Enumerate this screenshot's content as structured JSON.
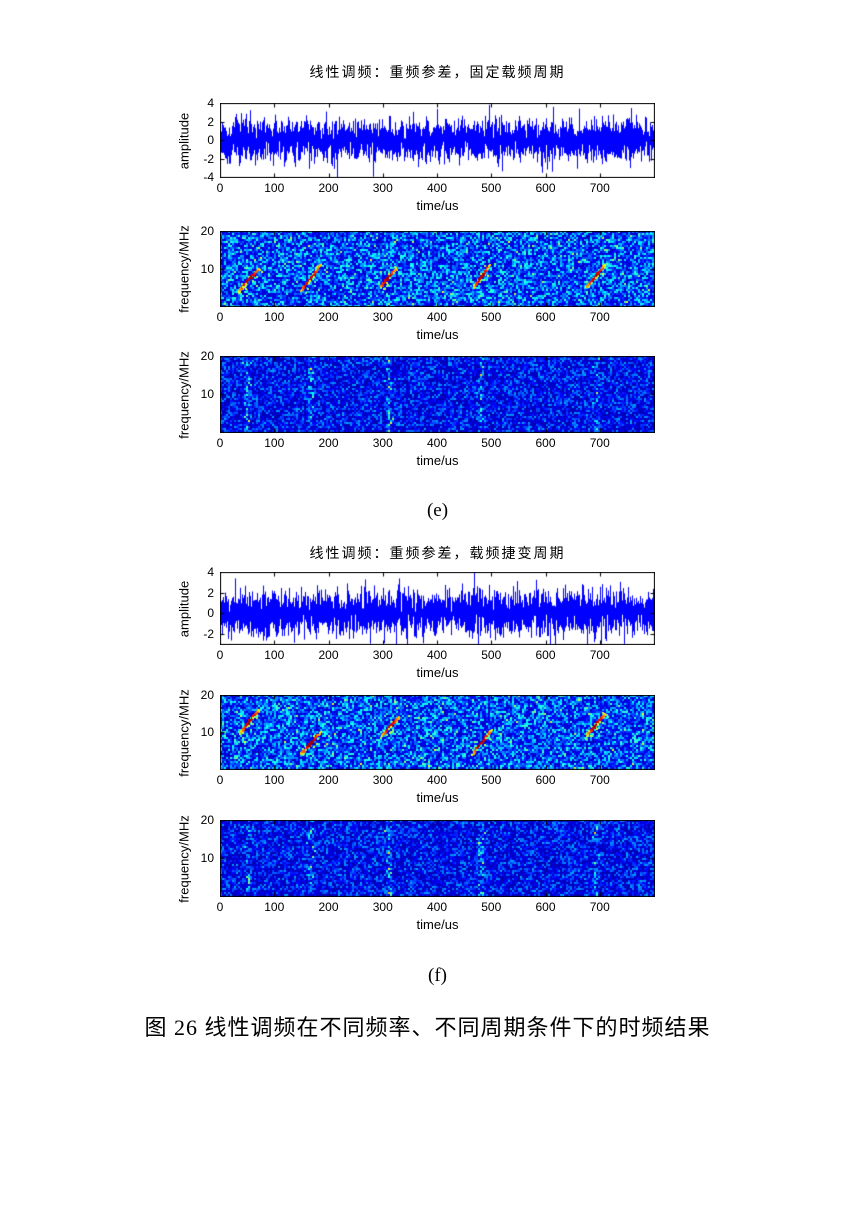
{
  "page": {
    "caption": "图 26 线性调频在不同频率、不同周期条件下的时频结果"
  },
  "figures": [
    {
      "label": "(e)",
      "title": "线性调频：重频参差，固定载频周期"
    },
    {
      "label": "(f)",
      "title": "线性调频：重频参差，载频捷变周期"
    }
  ],
  "colors": {
    "waveform_line": "#0000ff",
    "axis": "#000000",
    "page_background": "#ffffff",
    "spectrogram_colormap": "jet"
  },
  "chart_data": [
    {
      "type": "line",
      "render": "waveform",
      "seed": 11,
      "xlabel": "time/us",
      "ylabel": "amplitude",
      "xlim": [
        0,
        800
      ],
      "ylim": [
        -4,
        4
      ],
      "xticks": [
        0,
        100,
        200,
        300,
        400,
        500,
        600,
        700
      ],
      "yticks": [
        4,
        2,
        0,
        -2,
        -4
      ],
      "signal": "dense zero-mean gaussian-like noise, envelope about ±2.5, occasional peaks to ±4"
    },
    {
      "type": "heatmap",
      "render": "chirp-spectrogram",
      "seed": 22,
      "xlabel": "time/us",
      "ylabel": "frequency/MHz",
      "xlim": [
        0,
        800
      ],
      "ylim": [
        0,
        20
      ],
      "xticks": [
        0,
        100,
        200,
        300,
        400,
        500,
        600,
        700
      ],
      "yticks": [
        20,
        10
      ],
      "note": "five linear up-chirps at staggered PRI, fixed carrier band ~4-11 MHz, bright noisy blue background",
      "chirps": [
        {
          "t0": 35,
          "t1": 72,
          "f0": 4,
          "f1": 10
        },
        {
          "t0": 150,
          "t1": 186,
          "f0": 4,
          "f1": 11
        },
        {
          "t0": 295,
          "t1": 325,
          "f0": 5,
          "f1": 10
        },
        {
          "t0": 468,
          "t1": 498,
          "f0": 5,
          "f1": 11
        },
        {
          "t0": 676,
          "t1": 710,
          "f0": 5,
          "f1": 11
        }
      ]
    },
    {
      "type": "heatmap",
      "render": "striation-spectrogram",
      "seed": 33,
      "xlabel": "time/us",
      "ylabel": "frequency/MHz",
      "xlim": [
        0,
        800
      ],
      "ylim": [
        0,
        20
      ],
      "xticks": [
        0,
        100,
        200,
        300,
        400,
        500,
        600,
        700
      ],
      "yticks": [
        20,
        10
      ],
      "note": "dark blue noise with faint vertical energy striations at pulse times",
      "striation_times": [
        48,
        165,
        310,
        480,
        692
      ]
    },
    {
      "type": "line",
      "render": "waveform",
      "seed": 44,
      "xlabel": "time/us",
      "ylabel": "amplitude",
      "xlim": [
        0,
        800
      ],
      "ylim": [
        -3,
        4
      ],
      "xticks": [
        0,
        100,
        200,
        300,
        400,
        500,
        600,
        700
      ],
      "yticks": [
        4,
        2,
        0,
        -2
      ],
      "signal": "dense zero-mean gaussian-like noise, envelope about ±2.5, peaks clipped at axis bottom"
    },
    {
      "type": "heatmap",
      "render": "chirp-spectrogram",
      "seed": 55,
      "xlabel": "time/us",
      "ylabel": "frequency/MHz",
      "xlim": [
        0,
        800
      ],
      "ylim": [
        0,
        20
      ],
      "xticks": [
        0,
        100,
        200,
        300,
        400,
        500,
        600,
        700
      ],
      "yticks": [
        20,
        10
      ],
      "note": "five linear up-chirps at staggered PRI with agile (different) carrier frequencies",
      "chirps": [
        {
          "t0": 38,
          "t1": 72,
          "f0": 10,
          "f1": 16
        },
        {
          "t0": 150,
          "t1": 186,
          "f0": 4,
          "f1": 10
        },
        {
          "t0": 298,
          "t1": 330,
          "f0": 9,
          "f1": 14
        },
        {
          "t0": 466,
          "t1": 500,
          "f0": 4,
          "f1": 10.5
        },
        {
          "t0": 676,
          "t1": 710,
          "f0": 9,
          "f1": 15
        }
      ]
    },
    {
      "type": "heatmap",
      "render": "striation-spectrogram",
      "seed": 66,
      "xlabel": "time/us",
      "ylabel": "frequency/MHz",
      "xlim": [
        0,
        800
      ],
      "ylim": [
        0,
        20
      ],
      "xticks": [
        0,
        100,
        200,
        300,
        400,
        500,
        600,
        700
      ],
      "yticks": [
        20,
        10
      ],
      "note": "dark blue noise with faint vertical energy striations at pulse times",
      "striation_times": [
        50,
        165,
        310,
        480,
        692
      ]
    }
  ]
}
